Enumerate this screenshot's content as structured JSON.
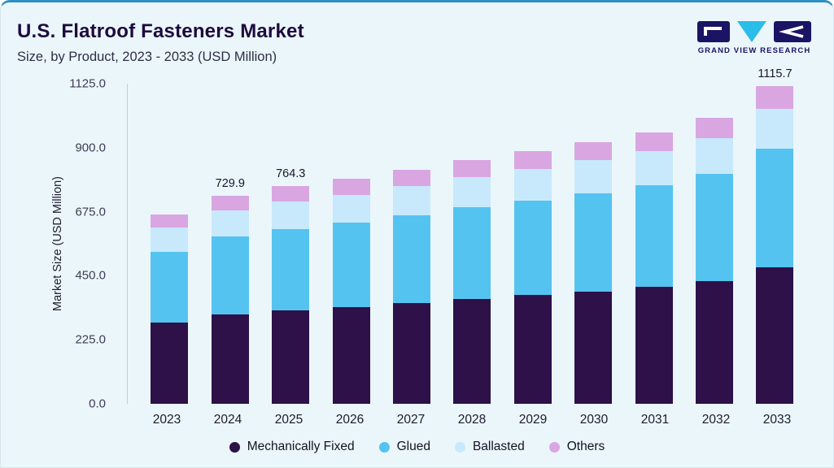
{
  "header": {
    "title": "U.S. Flatroof Fasteners Market",
    "subtitle": "Size, by Product, 2023 - 2033 (USD Million)",
    "logo_text": "GRAND VIEW RESEARCH"
  },
  "colors": {
    "accent_border": "#2d8fc3",
    "background": "#ebf6fb",
    "title_text": "#1d0b3e",
    "logo_navy": "#1b1464",
    "logo_cyan": "#2bbde9"
  },
  "chart_data": {
    "type": "bar",
    "stacked": true,
    "title": "U.S. Flatroof Fasteners Market Size, by Product, 2023 - 2033 (USD Million)",
    "xlabel": "",
    "ylabel": "Market Size (USD Million)",
    "ylim": [
      0,
      1125
    ],
    "grid": false,
    "legend_position": "bottom",
    "yticks": [
      0,
      225,
      450,
      675,
      900,
      1125
    ],
    "ytick_labels": [
      "0.0",
      "225.0",
      "450.0",
      "675.0",
      "900.0",
      "1125.0"
    ],
    "categories": [
      "2023",
      "2024",
      "2025",
      "2026",
      "2027",
      "2028",
      "2029",
      "2030",
      "2031",
      "2032",
      "2033"
    ],
    "series": [
      {
        "name": "Mechanically Fixed",
        "color": "#2d1148",
        "values": [
          286.0,
          313.9,
          328.6,
          339.7,
          353.5,
          368.9,
          381.8,
          395.6,
          410.7,
          432.2,
          479.8
        ]
      },
      {
        "name": "Glued",
        "color": "#55c3f0",
        "values": [
          249.4,
          273.7,
          286.6,
          296.3,
          308.3,
          321.8,
          333.0,
          345.0,
          358.1,
          376.9,
          418.4
        ]
      },
      {
        "name": "Ballasted",
        "color": "#c7e9fb",
        "values": [
          83.1,
          91.2,
          95.6,
          98.8,
          102.7,
          107.3,
          111.0,
          115.0,
          119.4,
          125.6,
          139.5
        ]
      },
      {
        "name": "Others",
        "color": "#d9a6e2",
        "values": [
          46.5,
          51.1,
          53.5,
          55.2,
          57.5,
          60.0,
          62.2,
          64.4,
          66.8,
          70.3,
          78.0
        ]
      }
    ],
    "totals": [
      665.0,
      729.9,
      764.3,
      790.0,
      822.0,
      858.0,
      888.0,
      920.0,
      955.0,
      1005.0,
      1115.7
    ],
    "bar_labels": {
      "2024": "729.9",
      "2025": "764.3",
      "2033": "1115.7"
    }
  }
}
